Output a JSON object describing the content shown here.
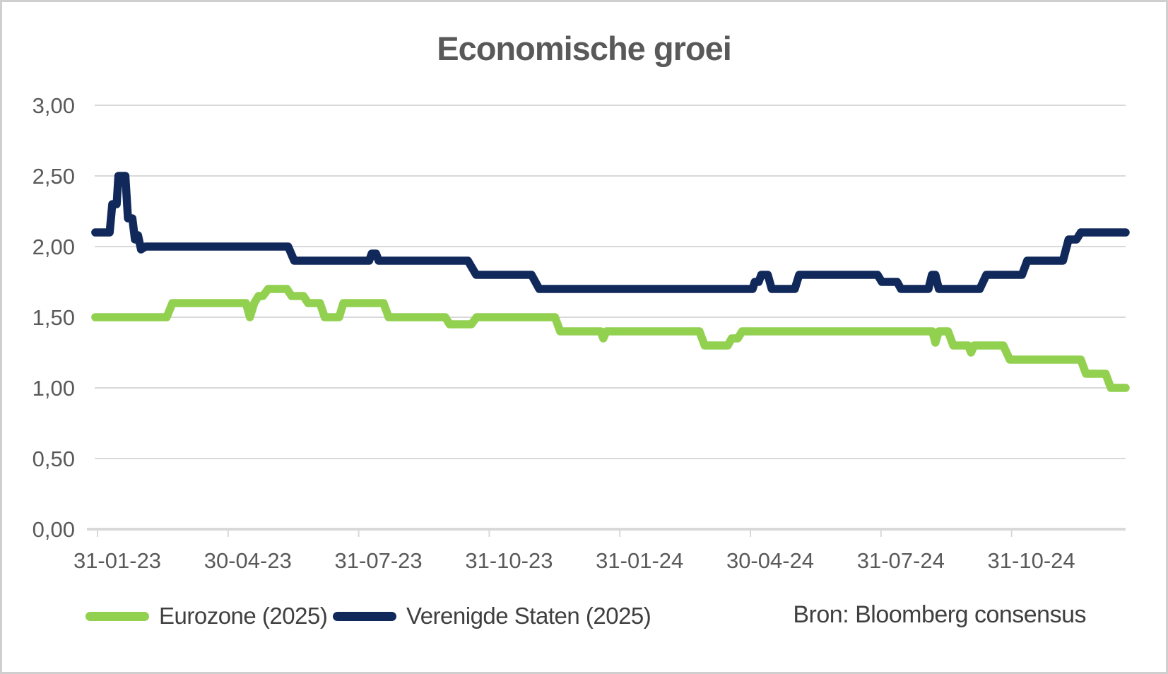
{
  "title": "Economische groei",
  "source": "Bron: Bloomberg consensus",
  "legend": [
    {
      "label": "Eurozone (2025)",
      "color": "#92d050"
    },
    {
      "label": "Verenigde Staten (2025)",
      "color": "#10295a"
    }
  ],
  "colors": {
    "eurozone_line": "#92d050",
    "us_line": "#10295a",
    "gridline": "#d9d9d9",
    "axis_line": "#d9d9d9",
    "title_text": "#595959",
    "tick_text": "#595959",
    "legend_text": "#3f3f3f",
    "frame_border": "#cfcfcf",
    "background": "#ffffff"
  },
  "chart_data": {
    "type": "line",
    "title": "Economische groei",
    "xlabel": "",
    "ylabel": "",
    "x_axis": {
      "kind": "date",
      "start_date": "31-01-23",
      "tick_labels": [
        "31-01-23",
        "30-04-23",
        "31-07-23",
        "31-10-23",
        "31-01-24",
        "30-04-24",
        "31-07-24",
        "31-10-24"
      ],
      "tick_month_offsets": [
        0,
        3,
        6,
        9,
        12,
        15,
        18,
        21
      ],
      "end_month_offset": 23.62
    },
    "y_axis": {
      "range": [
        0,
        3
      ],
      "ticks": [
        {
          "label": "3,00",
          "value": 3.0
        },
        {
          "label": "2,50",
          "value": 2.5
        },
        {
          "label": "2,00",
          "value": 2.0
        },
        {
          "label": "1,50",
          "value": 1.5
        },
        {
          "label": "1,00",
          "value": 1.0
        },
        {
          "label": "0,50",
          "value": 0.5
        },
        {
          "label": "0,00",
          "value": 0.0
        }
      ],
      "grid": true
    },
    "legend_position": "bottom",
    "series": [
      {
        "name": "Verenigde Staten (2025)",
        "color": "#10295a",
        "points": [
          [
            -0.05,
            2.1
          ],
          [
            0.28,
            2.1
          ],
          [
            0.34,
            2.3
          ],
          [
            0.44,
            2.3
          ],
          [
            0.48,
            2.5
          ],
          [
            0.64,
            2.5
          ],
          [
            0.7,
            2.2
          ],
          [
            0.8,
            2.2
          ],
          [
            0.86,
            2.05
          ],
          [
            0.93,
            2.08
          ],
          [
            1.0,
            1.98
          ],
          [
            1.1,
            2.0
          ],
          [
            4.38,
            2.0
          ],
          [
            4.52,
            1.9
          ],
          [
            6.24,
            1.9
          ],
          [
            6.3,
            1.95
          ],
          [
            6.4,
            1.95
          ],
          [
            6.46,
            1.9
          ],
          [
            8.51,
            1.9
          ],
          [
            8.7,
            1.8
          ],
          [
            9.97,
            1.8
          ],
          [
            10.15,
            1.7
          ],
          [
            15.05,
            1.7
          ],
          [
            15.1,
            1.75
          ],
          [
            15.19,
            1.75
          ],
          [
            15.25,
            1.8
          ],
          [
            15.4,
            1.8
          ],
          [
            15.49,
            1.7
          ],
          [
            16.02,
            1.7
          ],
          [
            16.12,
            1.8
          ],
          [
            17.92,
            1.8
          ],
          [
            18.02,
            1.75
          ],
          [
            18.37,
            1.75
          ],
          [
            18.46,
            1.7
          ],
          [
            19.09,
            1.7
          ],
          [
            19.17,
            1.8
          ],
          [
            19.25,
            1.8
          ],
          [
            19.33,
            1.7
          ],
          [
            20.27,
            1.7
          ],
          [
            20.42,
            1.8
          ],
          [
            21.24,
            1.8
          ],
          [
            21.36,
            1.9
          ],
          [
            22.18,
            1.9
          ],
          [
            22.31,
            2.05
          ],
          [
            22.49,
            2.05
          ],
          [
            22.59,
            2.1
          ],
          [
            23.62,
            2.1
          ]
        ]
      },
      {
        "name": "Eurozone (2025)",
        "color": "#92d050",
        "points": [
          [
            -0.05,
            1.5
          ],
          [
            1.59,
            1.5
          ],
          [
            1.72,
            1.6
          ],
          [
            3.41,
            1.6
          ],
          [
            3.5,
            1.5
          ],
          [
            3.6,
            1.6
          ],
          [
            3.7,
            1.65
          ],
          [
            3.8,
            1.65
          ],
          [
            3.92,
            1.7
          ],
          [
            4.35,
            1.7
          ],
          [
            4.46,
            1.65
          ],
          [
            4.73,
            1.65
          ],
          [
            4.84,
            1.6
          ],
          [
            5.11,
            1.6
          ],
          [
            5.22,
            1.5
          ],
          [
            5.55,
            1.5
          ],
          [
            5.65,
            1.6
          ],
          [
            6.57,
            1.6
          ],
          [
            6.69,
            1.5
          ],
          [
            7.99,
            1.5
          ],
          [
            8.09,
            1.45
          ],
          [
            8.59,
            1.45
          ],
          [
            8.71,
            1.5
          ],
          [
            10.51,
            1.5
          ],
          [
            10.63,
            1.4
          ],
          [
            11.56,
            1.4
          ],
          [
            11.62,
            1.35
          ],
          [
            11.69,
            1.4
          ],
          [
            13.83,
            1.4
          ],
          [
            13.95,
            1.3
          ],
          [
            14.48,
            1.3
          ],
          [
            14.57,
            1.35
          ],
          [
            14.71,
            1.35
          ],
          [
            14.81,
            1.4
          ],
          [
            19.18,
            1.4
          ],
          [
            19.25,
            1.32
          ],
          [
            19.33,
            1.4
          ],
          [
            19.54,
            1.4
          ],
          [
            19.66,
            1.3
          ],
          [
            20.0,
            1.3
          ],
          [
            20.07,
            1.25
          ],
          [
            20.14,
            1.3
          ],
          [
            20.81,
            1.3
          ],
          [
            20.96,
            1.2
          ],
          [
            22.59,
            1.2
          ],
          [
            22.71,
            1.1
          ],
          [
            23.16,
            1.1
          ],
          [
            23.28,
            1.0
          ],
          [
            23.62,
            1.0
          ]
        ]
      }
    ]
  }
}
